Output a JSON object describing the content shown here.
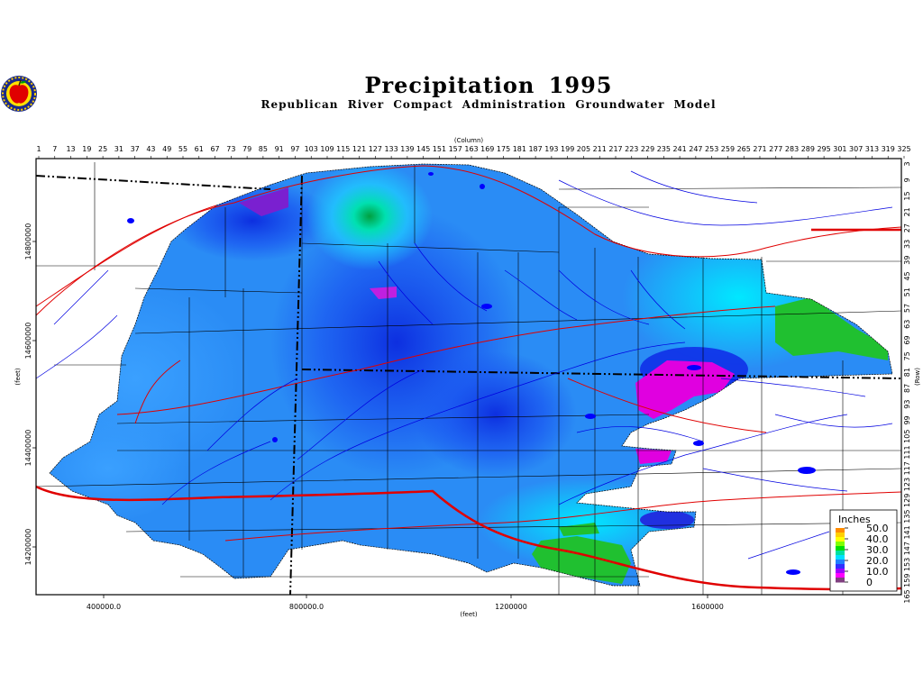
{
  "title": "Precipitation 1995",
  "subtitle": "Republican River Compact Administration Groundwater Model",
  "logo_icon": "apple-icon",
  "axes": {
    "column_label": "(Column)",
    "row_label": "(Row)",
    "x_label": "(feet)",
    "y_label": "(feet)",
    "columns": [
      1,
      7,
      13,
      19,
      25,
      31,
      37,
      43,
      49,
      55,
      61,
      67,
      73,
      79,
      85,
      91,
      97,
      103,
      109,
      115,
      121,
      127,
      133,
      139,
      145,
      151,
      157,
      163,
      169,
      175,
      181,
      187,
      193,
      199,
      205,
      211,
      217,
      223,
      229,
      235,
      241,
      247,
      253,
      259,
      265,
      271,
      277,
      283,
      289,
      295,
      301,
      307,
      313,
      319,
      325
    ],
    "rows": [
      3,
      9,
      15,
      21,
      27,
      33,
      39,
      45,
      51,
      57,
      63,
      69,
      75,
      81,
      87,
      93,
      99,
      105,
      111,
      117,
      123,
      129,
      135,
      141,
      147,
      153,
      159,
      165
    ],
    "x_ticks": [
      "400000.0",
      "800000.0",
      "1200000",
      "1600000"
    ],
    "y_ticks": [
      "14800000",
      "14600000",
      "14400000",
      "14200000"
    ]
  },
  "legend": {
    "title": "Inches",
    "entries": [
      {
        "label": "50.0",
        "color": "#ff8c00"
      },
      {
        "label": "40.0",
        "color": "#ffff00"
      },
      {
        "label": "30.0",
        "color": "#00e000"
      },
      {
        "label": "20.0",
        "color": "#00c8ff"
      },
      {
        "label": "10.0",
        "color": "#ff00ff"
      },
      {
        "label": "0",
        "color": "#804080"
      }
    ]
  },
  "colors": {
    "state_border": "#000000",
    "roads": "#e00000",
    "streams": "#0000e0",
    "frame": "#000000"
  }
}
